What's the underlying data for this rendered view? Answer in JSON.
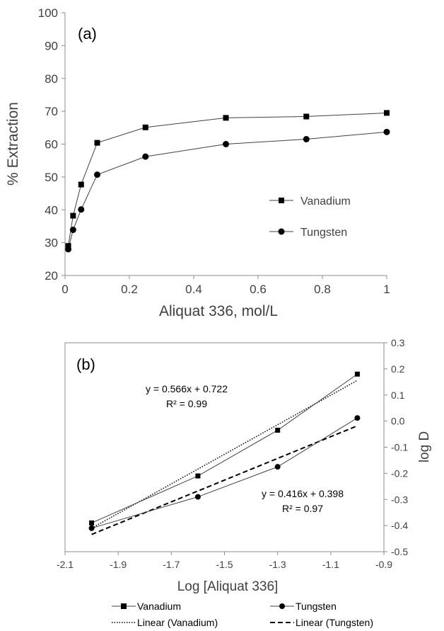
{
  "chart_data": [
    {
      "type": "line",
      "panel_label": "(a)",
      "xlabel": "Aliquat 336, mol/L",
      "ylabel": "% Extraction",
      "xlim": [
        0,
        1
      ],
      "ylim": [
        20,
        100
      ],
      "x_ticks": [
        0,
        0.2,
        0.4,
        0.6,
        0.8,
        1
      ],
      "x_tick_labels": [
        "0",
        "0.2",
        "0.4",
        "0.6",
        "0.8",
        "1"
      ],
      "y_ticks": [
        20,
        30,
        40,
        50,
        60,
        70,
        80,
        90,
        100
      ],
      "y_tick_labels": [
        "20",
        "30",
        "40",
        "50",
        "60",
        "70",
        "80",
        "90",
        "100"
      ],
      "grid": false,
      "legend_position": "right",
      "series": [
        {
          "name": "Vanadium",
          "marker": "square",
          "x": [
            0.01,
            0.025,
            0.05,
            0.1,
            0.25,
            0.5,
            0.75,
            1
          ],
          "y": [
            29.0,
            38.2,
            47.7,
            60.4,
            65.1,
            68.0,
            68.4,
            69.5
          ]
        },
        {
          "name": "Tungsten",
          "marker": "circle",
          "x": [
            0.01,
            0.025,
            0.05,
            0.1,
            0.25,
            0.5,
            0.75,
            1
          ],
          "y": [
            28.0,
            33.9,
            40.1,
            50.7,
            56.2,
            60.0,
            61.5,
            63.7
          ]
        }
      ]
    },
    {
      "type": "scatter",
      "panel_label": "(b)",
      "xlabel": "Log [Aliquat 336]",
      "ylabel": "log D",
      "xlim": [
        -2.1,
        -0.9
      ],
      "ylim": [
        -0.5,
        0.3
      ],
      "y_axis_side": "right",
      "x_ticks": [
        -2.1,
        -1.9,
        -1.7,
        -1.5,
        -1.3,
        -1.1,
        -0.9
      ],
      "x_tick_labels": [
        "-2.1",
        "-1.9",
        "-1.7",
        "-1.5",
        "-1.3",
        "-1.1",
        "-0.9"
      ],
      "y_ticks": [
        0.3,
        0.2,
        0.1,
        0.0,
        -0.1,
        -0.2,
        -0.3,
        -0.4,
        -0.5
      ],
      "y_tick_labels": [
        "0.3",
        "0.2",
        "0.1",
        "0.0",
        "-0.1",
        "-0.2",
        "-0.3",
        "-0.4",
        "-0.5"
      ],
      "grid": false,
      "legend_position": "bottom",
      "series": [
        {
          "name": "Vanadium",
          "marker": "square",
          "x": [
            -2,
            -1.6,
            -1.3,
            -1
          ],
          "y": [
            -0.39,
            -0.21,
            -0.035,
            0.18
          ]
        },
        {
          "name": "Tungsten",
          "marker": "circle",
          "x": [
            -2,
            -1.6,
            -1.3,
            -1
          ],
          "y": [
            -0.41,
            -0.29,
            -0.175,
            0.012
          ]
        }
      ],
      "trendlines": [
        {
          "name": "Linear (Vanadium)",
          "style": "dotted",
          "slope": 0.566,
          "intercept": 0.722,
          "x_range": [
            -2,
            -1
          ],
          "equation": "y = 0.566x + 0.722",
          "r2": "R² = 0.99"
        },
        {
          "name": "Linear (Tungsten)",
          "style": "dashed",
          "slope": 0.416,
          "intercept": 0.398,
          "x_range": [
            -2,
            -1
          ],
          "equation": "y = 0.416x + 0.398",
          "r2": "R² = 0.97"
        }
      ]
    }
  ]
}
